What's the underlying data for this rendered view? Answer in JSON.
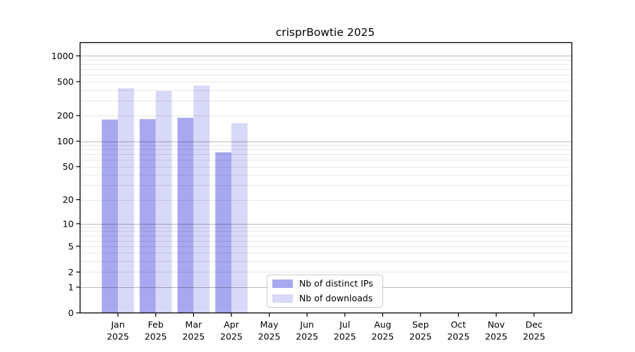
{
  "title": "crisprBowtie 2025",
  "legend": {
    "items": [
      {
        "label": "Nb of distinct IPs",
        "color": "#a8a8f0"
      },
      {
        "label": "Nb of downloads",
        "color": "#d8d8f8"
      }
    ]
  },
  "y_axis": {
    "tick_labels": [
      "0",
      "1",
      "2",
      "5",
      "10",
      "20",
      "50",
      "100",
      "200",
      "500",
      "1000"
    ]
  },
  "colors": {
    "distinct_ips_bar": "#a8a8f0",
    "downloads_bar": "#d8d8f8",
    "frame": "#000000",
    "grid_major": "rgba(0,0,0,0.27)",
    "grid_minor": "rgba(0,0,0,0.09)",
    "background": "#ffffff"
  },
  "chart_data": {
    "type": "bar",
    "title": "crisprBowtie 2025",
    "categories": [
      "Jan 2025",
      "Feb 2025",
      "Mar 2025",
      "Apr 2025",
      "May 2025",
      "Jun 2025",
      "Jul 2025",
      "Aug 2025",
      "Sep 2025",
      "Oct 2025",
      "Nov 2025",
      "Dec 2025"
    ],
    "series": [
      {
        "name": "Nb of distinct IPs",
        "color": "#a8a8f0",
        "values": [
          180,
          182,
          189,
          74,
          null,
          null,
          null,
          null,
          null,
          null,
          null,
          null
        ]
      },
      {
        "name": "Nb of downloads",
        "color": "#d8d8f8",
        "values": [
          418,
          388,
          450,
          163,
          null,
          null,
          null,
          null,
          null,
          null,
          null,
          null
        ]
      }
    ],
    "yscale": "log1p",
    "yticks": [
      0,
      1,
      2,
      5,
      10,
      20,
      50,
      100,
      200,
      500,
      1000
    ],
    "ylim": [
      0,
      1430
    ],
    "xlabel": "",
    "ylabel": "",
    "grid": "horizontal",
    "legend_position": "inside-bottom-center"
  }
}
